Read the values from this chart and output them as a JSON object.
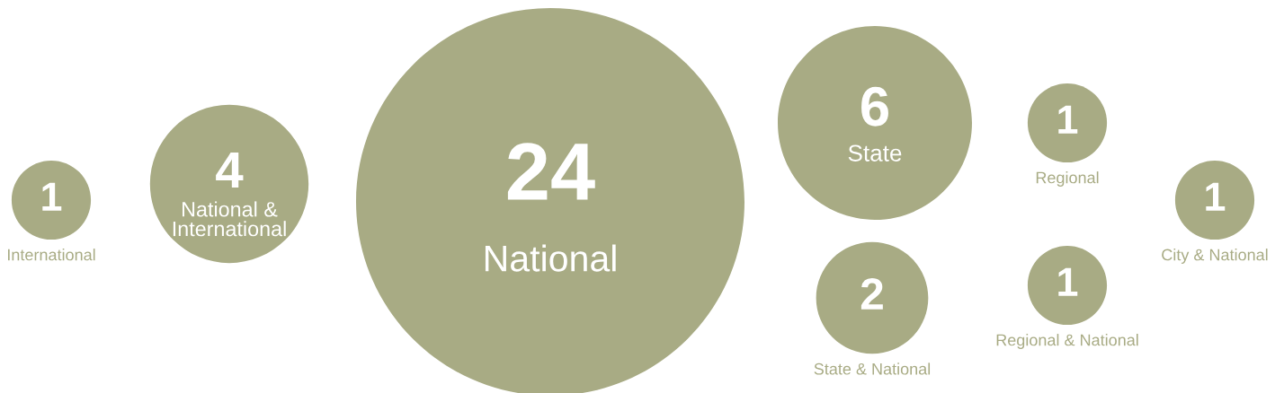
{
  "chart_data": {
    "type": "other",
    "categories": [
      "International",
      "National & International",
      "National",
      "State",
      "State & National",
      "Regional",
      "Regional & National",
      "City & National"
    ],
    "values": [
      1,
      4,
      24,
      6,
      2,
      1,
      1,
      1
    ],
    "color": "#a8ab84",
    "data_labels": true
  }
}
